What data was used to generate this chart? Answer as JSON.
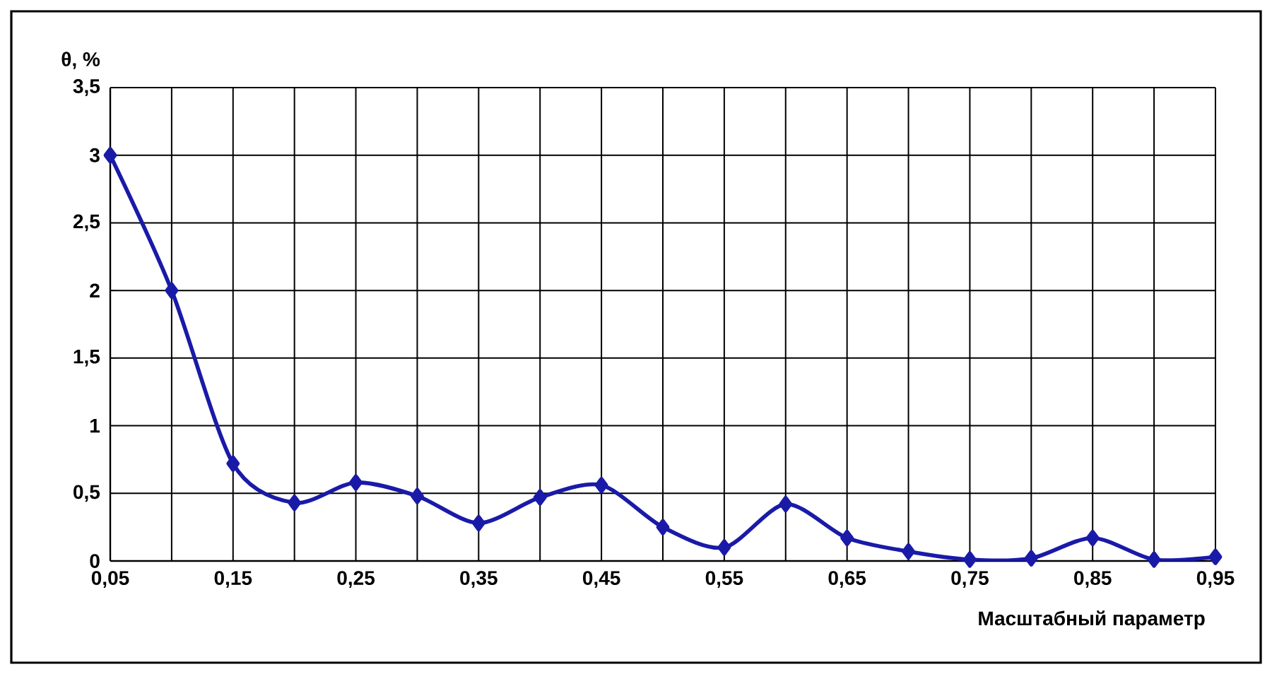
{
  "chart_data": {
    "type": "line",
    "ylabel": "θ, %",
    "xlabel": "Масштабный параметр",
    "x": [
      0.05,
      0.1,
      0.15,
      0.2,
      0.25,
      0.3,
      0.35,
      0.4,
      0.45,
      0.5,
      0.55,
      0.6,
      0.65,
      0.7,
      0.75,
      0.8,
      0.85,
      0.9,
      0.95
    ],
    "series": [
      {
        "color": "#1a1aa8",
        "values": [
          3.0,
          2.0,
          0.72,
          0.43,
          0.58,
          0.48,
          0.28,
          0.47,
          0.56,
          0.25,
          0.1,
          0.42,
          0.17,
          0.07,
          0.01,
          0.02,
          0.17,
          0.01,
          0.03
        ]
      }
    ],
    "xlim": [
      0.05,
      0.95
    ],
    "ylim": [
      0,
      3.5
    ],
    "xticks": [
      {
        "value": 0.05,
        "label": "0,05"
      },
      {
        "value": 0.1,
        "label": null
      },
      {
        "value": 0.15,
        "label": "0,15"
      },
      {
        "value": 0.2,
        "label": null
      },
      {
        "value": 0.25,
        "label": "0,25"
      },
      {
        "value": 0.3,
        "label": null
      },
      {
        "value": 0.35,
        "label": "0,35"
      },
      {
        "value": 0.4,
        "label": null
      },
      {
        "value": 0.45,
        "label": "0,45"
      },
      {
        "value": 0.5,
        "label": null
      },
      {
        "value": 0.55,
        "label": "0,55"
      },
      {
        "value": 0.6,
        "label": null
      },
      {
        "value": 0.65,
        "label": "0,65"
      },
      {
        "value": 0.7,
        "label": null
      },
      {
        "value": 0.75,
        "label": "0,75"
      },
      {
        "value": 0.8,
        "label": null
      },
      {
        "value": 0.85,
        "label": "0,85"
      },
      {
        "value": 0.9,
        "label": null
      },
      {
        "value": 0.95,
        "label": "0,95"
      }
    ],
    "yticks": [
      0,
      {
        "value": 0.5,
        "label": "0,5"
      },
      1,
      {
        "value": 1.5,
        "label": "1,5"
      },
      2,
      {
        "value": 2.5,
        "label": "2,5"
      },
      3,
      {
        "value": 3.5,
        "label": "3,5"
      }
    ],
    "grid": true,
    "marker": "diamond",
    "line_style": "solid"
  }
}
